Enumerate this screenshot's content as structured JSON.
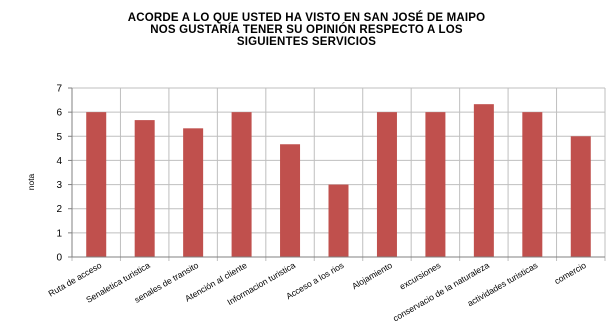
{
  "chart_data": {
    "type": "bar",
    "title_lines": [
      "ACORDE A LO QUE USTED HA VISTO EN SAN JOSÉ DE MAIPO",
      "NOS GUSTARÍA TENER SU OPINIÓN RESPECTO A LOS",
      "SIGUIENTES SERVICIOS"
    ],
    "xlabel": "",
    "ylabel": "nota",
    "ylim": [
      0,
      7
    ],
    "yticks": [
      0,
      1,
      2,
      3,
      4,
      5,
      6,
      7
    ],
    "grid": true,
    "legend": "none",
    "bar_color": "#c0504d",
    "categories": [
      "Ruta de acceso",
      "Senaletica turistica",
      "senales de transito",
      "Atención al cliente",
      "Informacion turistica",
      "Acceso a los rios",
      "Alojamiento",
      "excursiones",
      "conservacio de la naturaleza",
      "actividades turisticas",
      "comercio"
    ],
    "values": [
      6.0,
      5.67,
      5.33,
      6.0,
      4.67,
      3.0,
      6.0,
      6.0,
      6.33,
      6.0,
      5.0
    ]
  }
}
